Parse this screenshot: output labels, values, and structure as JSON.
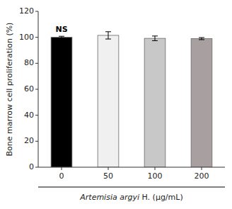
{
  "chart_data": {
    "type": "bar",
    "categories": [
      "0",
      "50",
      "100",
      "200"
    ],
    "values": [
      100.0,
      101.5,
      99.2,
      99.0
    ],
    "errors": [
      0.8,
      2.8,
      1.8,
      0.8
    ],
    "colors": [
      "#000000",
      "#f0f0f0",
      "#c8c8c8",
      "#a8a0a0"
    ],
    "ylabel": "Bone marrow cell proliferation (%)",
    "xlabel": "Artemisia argyi H. (μg/mL)",
    "annotations": [
      {
        "text": "NS",
        "category": "0"
      }
    ],
    "ylim": [
      0,
      120
    ],
    "yticks": [
      0,
      20,
      40,
      60,
      80,
      100,
      120
    ],
    "grid": false
  }
}
